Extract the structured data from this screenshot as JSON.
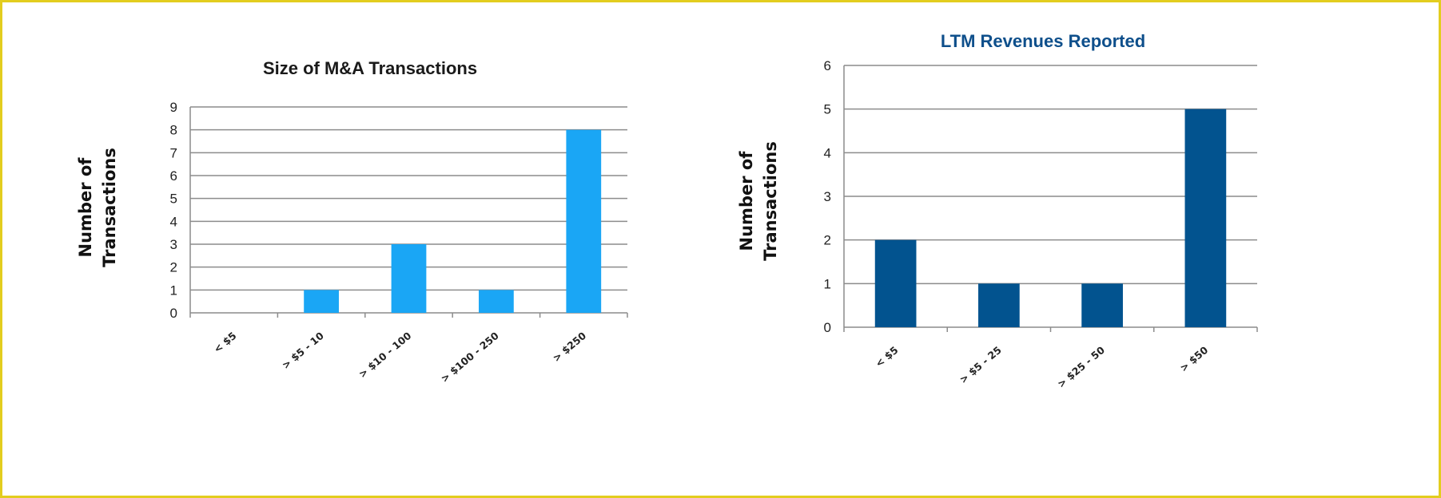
{
  "colors": {
    "frame_border": "#e3cd1f",
    "chart1_bar": "#1aa6f5",
    "chart2_bar": "#02538f",
    "grid": "#8c8c8c"
  },
  "chart_data": [
    {
      "type": "bar",
      "title": "Size of M&A Transactions",
      "ylabel": "Number of Transactions",
      "xlabel": "",
      "categories": [
        "< $5",
        "> $5 - 10",
        "> $10 - 100",
        "> $100 - 250",
        "> $250"
      ],
      "values": [
        0,
        1,
        3,
        1,
        8
      ],
      "ylim": [
        0,
        9
      ],
      "yticks": [
        "0",
        "1",
        "2",
        "3",
        "4",
        "5",
        "6",
        "7",
        "8",
        "9"
      ],
      "grid": true,
      "color": "#1aa6f5"
    },
    {
      "type": "bar",
      "title": "LTM Revenues Reported",
      "ylabel": "Number of Transactions",
      "xlabel": "",
      "categories": [
        "< $5",
        "> $5 - 25",
        "> $25 - 50",
        "> $50"
      ],
      "values": [
        2,
        1,
        1,
        5
      ],
      "ylim": [
        0,
        6
      ],
      "yticks": [
        "0",
        "1",
        "2",
        "3",
        "4",
        "5",
        "6"
      ],
      "grid": true,
      "color": "#02538f"
    }
  ]
}
